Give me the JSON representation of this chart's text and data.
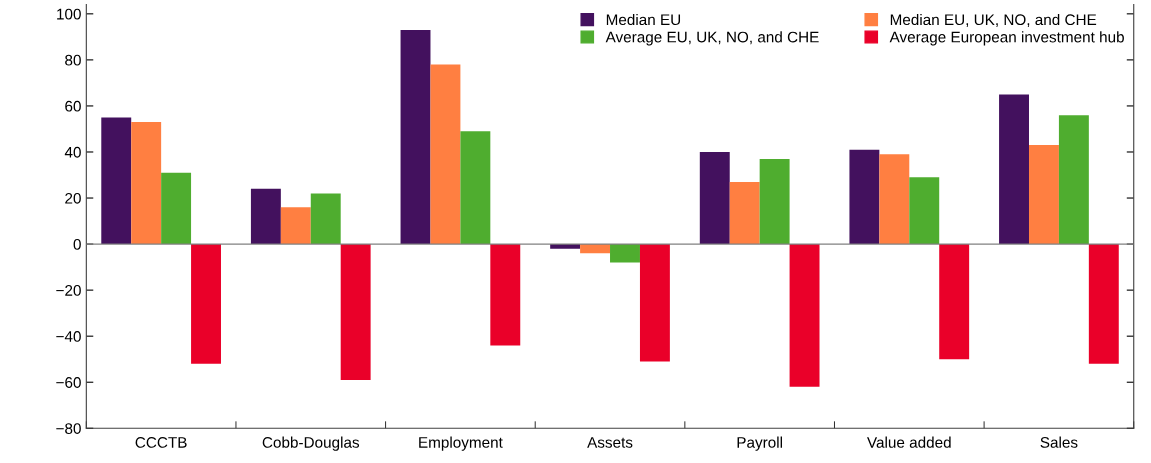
{
  "chart_data": {
    "type": "bar",
    "categories": [
      "CCCTB",
      "Cobb-Douglas",
      "Employment",
      "Assets",
      "Payroll",
      "Value added",
      "Sales"
    ],
    "series": [
      {
        "name": "Median EU",
        "color": "#43115e",
        "values": [
          55,
          24,
          93,
          -2,
          40,
          41,
          65
        ]
      },
      {
        "name": "Median EU, UK, NO, and CHE",
        "color": "#ff7f41",
        "values": [
          53,
          16,
          78,
          -4,
          27,
          39,
          43
        ]
      },
      {
        "name": "Average EU, UK, NO, and CHE",
        "color": "#4fad2f",
        "values": [
          31,
          22,
          49,
          -8,
          37,
          29,
          56
        ]
      },
      {
        "name": "Average European investment hub",
        "color": "#ea0029",
        "values": [
          -52,
          -59,
          -44,
          -51,
          -62,
          -50,
          -52
        ]
      }
    ],
    "ylim": [
      -80,
      104
    ],
    "yticks": [
      -80,
      -60,
      -40,
      -20,
      0,
      20,
      40,
      60,
      80,
      100
    ],
    "ref_lines": [
      {
        "axis": "y",
        "value": 0,
        "color": "#808080"
      }
    ],
    "grid": false,
    "legend": "top right"
  }
}
